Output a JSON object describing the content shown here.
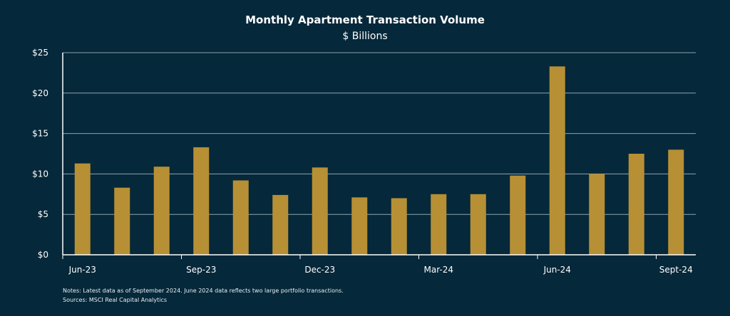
{
  "chart_data": {
    "type": "bar",
    "title": "Monthly Apartment Transaction Volume",
    "subtitle": "$ Billions",
    "categories": [
      "Jun-23",
      "Jul-23",
      "Aug-23",
      "Sep-23",
      "Oct-23",
      "Nov-23",
      "Dec-23",
      "Jan-24",
      "Feb-24",
      "Mar-24",
      "Apr-24",
      "May-24",
      "Jun-24",
      "Jul-24",
      "Aug-24",
      "Sept-24"
    ],
    "x_tick_labels": [
      "Jun-23",
      "",
      "",
      "Sep-23",
      "",
      "",
      "Dec-23",
      "",
      "",
      "Mar-24",
      "",
      "",
      "Jun-24",
      "",
      "",
      "Sept-24"
    ],
    "values": [
      11.3,
      8.3,
      10.9,
      13.3,
      9.2,
      7.4,
      10.8,
      7.1,
      7.0,
      7.5,
      7.5,
      9.8,
      23.3,
      10.0,
      12.5,
      13.0
    ],
    "ylim": [
      0,
      25
    ],
    "y_ticks": [
      0,
      5,
      10,
      15,
      20,
      25
    ],
    "y_tick_labels": [
      "$0",
      "$5",
      "$10",
      "$15",
      "$20",
      "$25"
    ],
    "grid": true,
    "bar_color": "#b78f34",
    "background": "#05283a"
  },
  "notes": "Notes: Latest data as of September 2024. June 2024 data reflects two large portfolio transactions.",
  "sources": "Sources: MSCI Real Capital Analytics"
}
